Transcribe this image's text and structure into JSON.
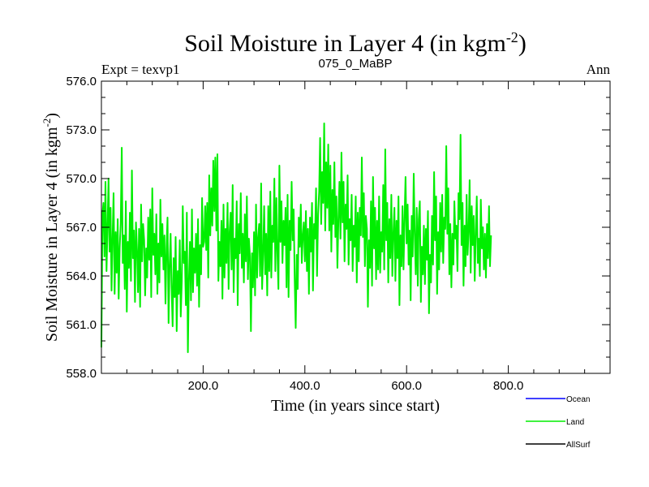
{
  "chart_data": {
    "type": "line",
    "title": "Soil Moisture in Layer 4 (in kgm",
    "title_exp": "-2",
    "title_close": ")",
    "subtitle_left": "Expt = texvp1",
    "subtitle_center": "075_0_MaBP",
    "subtitle_right": "Ann",
    "xlabel": "Time (in years since start)",
    "ylabel": "Soil Moisture in Layer 4 (in kgm",
    "ylabel_exp": "-2",
    "ylabel_close": ")",
    "xlim": [
      0,
      1000
    ],
    "ylim": [
      558.0,
      576.0
    ],
    "x_ticks": [
      200,
      400,
      600,
      800
    ],
    "x_tick_labels": [
      "200.0",
      "400.0",
      "600.0",
      "800.0"
    ],
    "y_ticks": [
      558,
      561,
      564,
      567,
      570,
      573,
      576
    ],
    "y_tick_labels": [
      "558.0",
      "561.0",
      "564.0",
      "567.0",
      "570.0",
      "573.0",
      "576.0"
    ],
    "series": [
      {
        "name": "Land",
        "color": "#00ee00",
        "x_start": 0,
        "x_step": 2,
        "values": [
          559.6,
          567.8,
          568.5,
          565.2,
          569.8,
          564.3,
          566.9,
          570.0,
          565.5,
          568.2,
          563.1,
          566.4,
          569.1,
          562.9,
          566.7,
          564.2,
          567.5,
          562.6,
          565.8,
          567.2,
          571.9,
          564.8,
          566.5,
          563.2,
          568.6,
          561.8,
          566.1,
          564.5,
          567.9,
          563.7,
          570.5,
          565.1,
          566.8,
          562.4,
          567.3,
          565.6,
          563.0,
          566.9,
          562.1,
          568.4,
          564.9,
          567.2,
          566.2,
          562.8,
          565.7,
          563.9,
          567.6,
          565.0,
          568.1,
          562.7,
          569.4,
          565.3,
          566.6,
          564.1,
          567.8,
          562.9,
          566.0,
          563.6,
          568.7,
          565.2,
          567.2,
          564.4,
          566.5,
          562.3,
          565.8,
          567.6,
          561.1,
          564.5,
          566.6,
          563.3,
          560.9,
          565.1,
          562.7,
          566.4,
          560.6,
          564.3,
          562.9,
          566.2,
          561.5,
          563.7,
          568.3,
          564.8,
          565.5,
          562.2,
          567.9,
          559.3,
          563.6,
          566.1,
          562.5,
          568.1,
          563.0,
          565.7,
          564.2,
          566.6,
          563.4,
          567.5,
          562.1,
          565.9,
          564.1,
          568.8,
          565.8,
          566.1,
          568.3,
          565.6,
          568.5,
          563.9,
          570.2,
          566.5,
          569.4,
          567.1,
          571.1,
          568.0,
          571.3,
          566.8,
          571.5,
          563.7,
          566.1,
          564.6,
          567.4,
          562.6,
          568.4,
          563.9,
          566.9,
          564.8,
          568.5,
          563.2,
          566.7,
          567.9,
          564.4,
          569.6,
          563.0,
          566.3,
          565.1,
          568.6,
          562.2,
          567.2,
          565.4,
          569.1,
          564.5,
          566.6,
          563.6,
          567.8,
          564.9,
          568.9,
          563.8,
          566.3,
          565.2,
          560.6,
          565.4,
          563.3,
          566.7,
          562.8,
          568.4,
          563.9,
          566.3,
          567.2,
          564.0,
          569.7,
          563.2,
          565.4,
          568.3,
          564.1,
          566.6,
          562.8,
          568.3,
          564.3,
          569.2,
          563.9,
          567.1,
          566.1,
          570.0,
          564.3,
          568.8,
          565.5,
          563.2,
          570.8,
          566.1,
          568.6,
          564.8,
          567.4,
          565.9,
          568.2,
          563.3,
          569.0,
          562.7,
          567.4,
          565.6,
          569.8,
          566.2,
          568.1,
          563.7,
          560.8,
          565.3,
          563.2,
          567.6,
          565.8,
          568.4,
          564.8,
          566.5,
          567.3,
          564.9,
          568.0,
          564.3,
          566.9,
          562.9,
          567.6,
          565.5,
          568.5,
          563.1,
          567.2,
          566.3,
          569.4,
          564.0,
          567.8,
          569.2,
          572.5,
          567.2,
          570.4,
          568.5,
          573.4,
          566.8,
          571.0,
          568.2,
          572.1,
          566.8,
          570.8,
          565.5,
          569.3,
          567.2,
          571.0,
          566.4,
          568.9,
          564.5,
          567.6,
          569.8,
          566.3,
          571.6,
          567.3,
          569.8,
          564.9,
          568.4,
          566.9,
          570.2,
          564.7,
          567.5,
          566.2,
          569.0,
          564.3,
          567.1,
          565.8,
          568.9,
          563.6,
          567.9,
          564.9,
          568.2,
          566.5,
          571.3,
          566.4,
          569.1,
          564.6,
          567.7,
          566.9,
          562.1,
          566.2,
          564.5,
          568.6,
          563.4,
          570.1,
          565.7,
          568.2,
          563.8,
          567.4,
          564.4,
          568.9,
          564.2,
          566.7,
          565.5,
          569.6,
          564.4,
          571.8,
          566.2,
          568.5,
          563.6,
          567.5,
          565.1,
          569.0,
          564.0,
          566.6,
          568.2,
          563.7,
          567.4,
          565.1,
          568.9,
          562.2,
          566.5,
          564.6,
          568.3,
          564.4,
          567.6,
          570.1,
          566.0,
          568.4,
          564.7,
          566.8,
          562.5,
          567.7,
          565.2,
          570.3,
          566.6,
          564.1,
          568.2,
          563.4,
          567.5,
          568.6,
          562.4,
          565.8,
          564.1,
          567.1,
          563.5,
          566.9,
          565.0,
          568.0,
          561.7,
          565.3,
          563.6,
          567.7,
          564.7,
          570.4,
          566.2,
          568.9,
          562.9,
          566.7,
          564.4,
          568.5,
          565.5,
          569.0,
          564.8,
          567.6,
          566.9,
          572.0,
          566.6,
          569.4,
          564.1,
          567.2,
          563.3,
          566.6,
          564.7,
          568.6,
          566.3,
          567.1,
          564.3,
          569.1,
          567.5,
          572.7,
          565.9,
          568.5,
          563.4,
          567.1,
          564.6,
          569.0,
          565.3,
          566.8,
          569.9,
          564.2,
          568.3,
          565.9,
          567.7,
          563.7,
          566.7,
          568.9,
          564.8,
          566.3,
          564.0,
          568.7,
          565.7,
          567.0,
          564.4,
          566.6,
          563.9,
          567.2,
          565.1,
          568.3,
          564.6,
          566.5
        ]
      }
    ],
    "legend": {
      "placement": "bottom-right",
      "entries": [
        {
          "label": "Ocean",
          "color": "#0000ff"
        },
        {
          "label": "Land",
          "color": "#00ee00"
        },
        {
          "label": "AllSurf",
          "color": "#000000"
        }
      ]
    }
  }
}
